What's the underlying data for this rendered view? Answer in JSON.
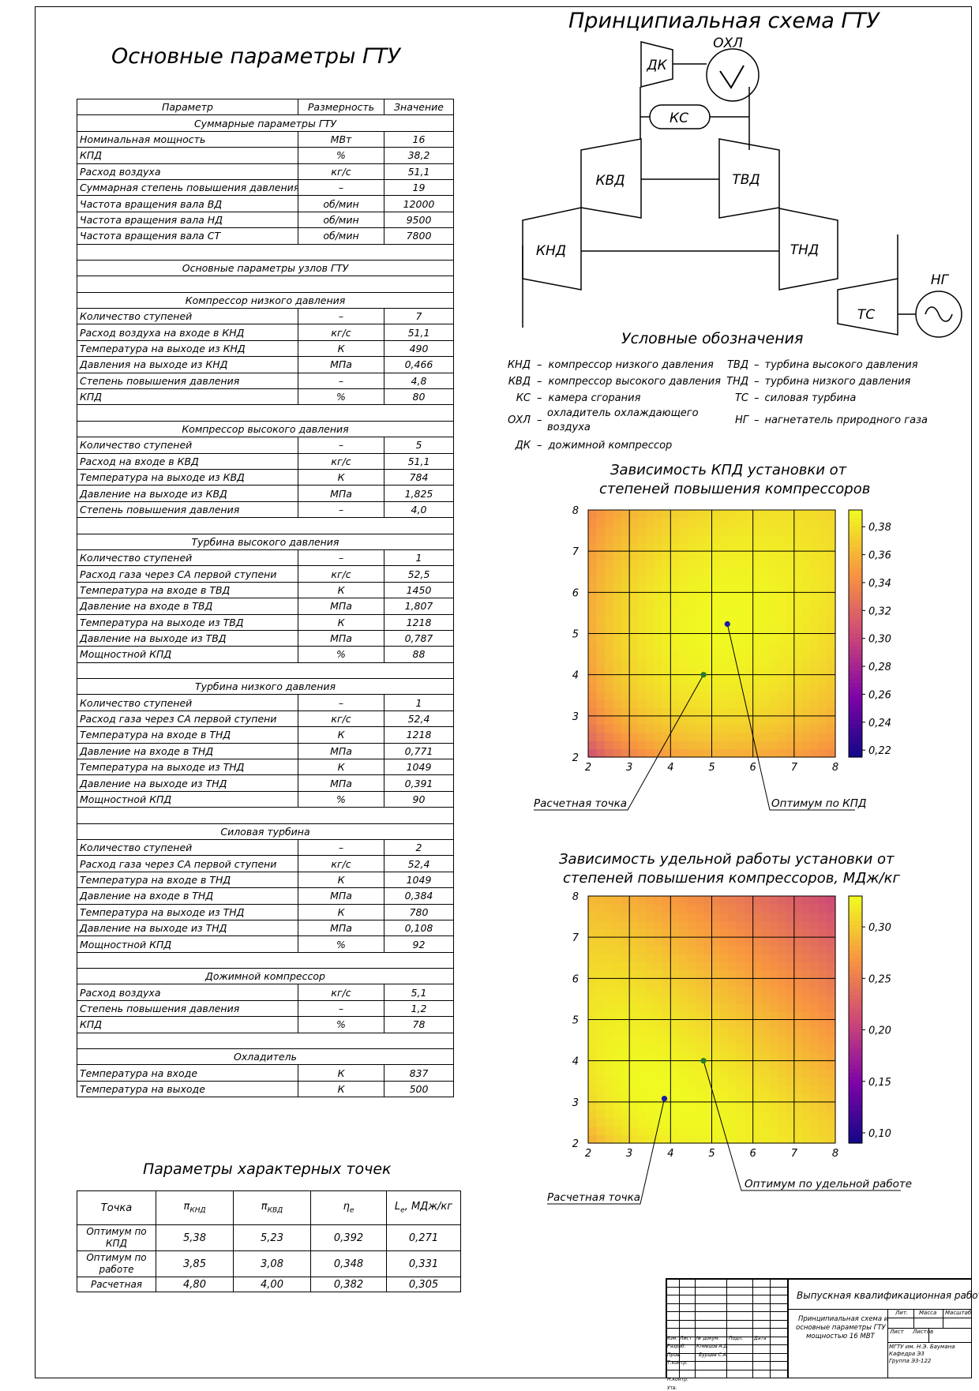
{
  "titles": {
    "main_params": "Основные параметры ГТУ",
    "scheme": "Принципиальная схема ГТУ",
    "legend": "Условные обозначения",
    "points": "Параметры характерных точек",
    "chart1_l1": "Зависимость КПД установки от",
    "chart1_l2": "степеней повышения компрессоров",
    "chart2_l1": "Зависимость удельной работы установки от",
    "chart2_l2": "степеней повышения компрессоров, МДж/кг"
  },
  "main_table": {
    "headers": [
      "Параметр",
      "Размерность",
      "Значение"
    ],
    "rows": [
      {
        "t": "sec",
        "label": "Суммарные параметры ГТУ"
      },
      {
        "t": "row",
        "p": "Номинальная мощность",
        "u": "МВт",
        "v": "16"
      },
      {
        "t": "row",
        "p": "КПД",
        "u": "%",
        "v": "38,2"
      },
      {
        "t": "row",
        "p": "Расход воздуха",
        "u": "кг/с",
        "v": "51,1"
      },
      {
        "t": "row",
        "p": "Суммарная степень повышения давления",
        "u": "–",
        "v": "19"
      },
      {
        "t": "row",
        "p": "Частота вращения вала ВД",
        "u": "об/мин",
        "v": "12000"
      },
      {
        "t": "row",
        "p": "Частота вращения вала НД",
        "u": "об/мин",
        "v": "9500"
      },
      {
        "t": "row",
        "p": "Частота вращения вала СТ",
        "u": "об/мин",
        "v": "7800"
      },
      {
        "t": "blank"
      },
      {
        "t": "sec",
        "label": "Основные параметры узлов ГТУ"
      },
      {
        "t": "blank"
      },
      {
        "t": "sec",
        "label": "Компрессор низкого давления"
      },
      {
        "t": "row",
        "p": "Количество ступеней",
        "u": "–",
        "v": "7"
      },
      {
        "t": "row",
        "p": "Расход воздуха на входе в КНД",
        "u": "кг/с",
        "v": "51,1"
      },
      {
        "t": "row",
        "p": "Температура на выходе из КНД",
        "u": "К",
        "v": "490"
      },
      {
        "t": "row",
        "p": "Давления на выходе из КНД",
        "u": "МПа",
        "v": "0,466"
      },
      {
        "t": "row",
        "p": "Степень повышения давления",
        "u": "–",
        "v": "4,8"
      },
      {
        "t": "row",
        "p": "КПД",
        "u": "%",
        "v": "80"
      },
      {
        "t": "blank"
      },
      {
        "t": "sec",
        "label": "Компрессор высокого давления"
      },
      {
        "t": "row",
        "p": "Количество ступеней",
        "u": "–",
        "v": "5"
      },
      {
        "t": "row",
        "p": "Расход на входе в КВД",
        "u": "кг/с",
        "v": "51,1"
      },
      {
        "t": "row",
        "p": "Температура на выходе из КВД",
        "u": "К",
        "v": "784"
      },
      {
        "t": "row",
        "p": "Давление на выходе из КВД",
        "u": "МПа",
        "v": "1,825"
      },
      {
        "t": "row",
        "p": "Степень повышения давления",
        "u": "–",
        "v": "4,0"
      },
      {
        "t": "blank"
      },
      {
        "t": "sec",
        "label": "Турбина высокого давления"
      },
      {
        "t": "row",
        "p": "Количество ступеней",
        "u": "–",
        "v": "1"
      },
      {
        "t": "row",
        "p": "Расход газа через СА первой ступени",
        "u": "кг/с",
        "v": "52,5"
      },
      {
        "t": "row",
        "p": "Температура на входе в ТВД",
        "u": "К",
        "v": "1450"
      },
      {
        "t": "row",
        "p": "Давление на входе в ТВД",
        "u": "МПа",
        "v": "1,807"
      },
      {
        "t": "row",
        "p": "Температура на выходе из ТВД",
        "u": "К",
        "v": "1218"
      },
      {
        "t": "row",
        "p": "Давление на выходе из ТВД",
        "u": "МПа",
        "v": "0,787"
      },
      {
        "t": "row",
        "p": "Мощностной КПД",
        "u": "%",
        "v": "88"
      },
      {
        "t": "blank"
      },
      {
        "t": "sec",
        "label": "Турбина низкого давления"
      },
      {
        "t": "row",
        "p": "Количество ступеней",
        "u": "–",
        "v": "1"
      },
      {
        "t": "row",
        "p": "Расход газа через СА первой ступени",
        "u": "кг/с",
        "v": "52,4"
      },
      {
        "t": "row",
        "p": "Температура на входе в ТНД",
        "u": "К",
        "v": "1218"
      },
      {
        "t": "row",
        "p": "Давление на входе в ТНД",
        "u": "МПа",
        "v": "0,771"
      },
      {
        "t": "row",
        "p": "Температура на выходе из ТНД",
        "u": "К",
        "v": "1049"
      },
      {
        "t": "row",
        "p": "Давление на выходе из ТНД",
        "u": "МПа",
        "v": "0,391"
      },
      {
        "t": "row",
        "p": "Мощностной КПД",
        "u": "%",
        "v": "90"
      },
      {
        "t": "blank"
      },
      {
        "t": "sec",
        "label": "Силовая турбина"
      },
      {
        "t": "row",
        "p": "Количество ступеней",
        "u": "–",
        "v": "2"
      },
      {
        "t": "row",
        "p": "Расход газа через СА первой ступени",
        "u": "кг/с",
        "v": "52,4"
      },
      {
        "t": "row",
        "p": "Температура на входе в ТНД",
        "u": "К",
        "v": "1049"
      },
      {
        "t": "row",
        "p": "Давление на входе в ТНД",
        "u": "МПа",
        "v": "0,384"
      },
      {
        "t": "row",
        "p": "Температура на выходе из ТНД",
        "u": "К",
        "v": "780"
      },
      {
        "t": "row",
        "p": "Давление на выходе из ТНД",
        "u": "МПа",
        "v": "0,108"
      },
      {
        "t": "row",
        "p": "Мощностной КПД",
        "u": "%",
        "v": "92"
      },
      {
        "t": "blank"
      },
      {
        "t": "sec",
        "label": "Дожимной компрессор"
      },
      {
        "t": "row",
        "p": "Расход воздуха",
        "u": "кг/с",
        "v": "5,1"
      },
      {
        "t": "row",
        "p": "Степень повышения давления",
        "u": "–",
        "v": "1,2"
      },
      {
        "t": "row",
        "p": "КПД",
        "u": "%",
        "v": "78"
      },
      {
        "t": "blank"
      },
      {
        "t": "sec",
        "label": "Охладитель"
      },
      {
        "t": "row",
        "p": "Температура на входе",
        "u": "К",
        "v": "837"
      },
      {
        "t": "row",
        "p": "Температура на выходе",
        "u": "К",
        "v": "500"
      }
    ]
  },
  "points_table": {
    "headers": {
      "h1": "Точка",
      "h2_main": "π",
      "h2_sub": "КНД",
      "h3_main": "π",
      "h3_sub": "КВД",
      "h4_main": "η",
      "h4_sub": "e",
      "h5_main": "L",
      "h5_sub": "e",
      "h5_tail": ", МДж/кг"
    },
    "rows": [
      {
        "name": "Оптимум по КПД",
        "pk": "5,38",
        "pv": "5,23",
        "eta": "0,392",
        "le": "0,271"
      },
      {
        "name": "Оптимум по работе",
        "pk": "3,85",
        "pv": "3,08",
        "eta": "0,348",
        "le": "0,331"
      },
      {
        "name": "Расчетная",
        "pk": "4,80",
        "pv": "4,00",
        "eta": "0,382",
        "le": "0,305"
      }
    ]
  },
  "scheme": {
    "dk": "ДК",
    "ohl": "ОХЛ",
    "ks": "КС",
    "kvd": "КВД",
    "tvd": "ТВД",
    "knd": "КНД",
    "tnd": "ТНД",
    "ts": "ТС",
    "ng": "НГ"
  },
  "legend": {
    "left": [
      {
        "a": "КНД",
        "d": "компрессор низкого давления"
      },
      {
        "a": "КВД",
        "d": "компрессор высокого давления"
      },
      {
        "a": "КС",
        "d": "камера сгорания"
      },
      {
        "a": "ОХЛ",
        "d1": "охладитель охлаждающего",
        "d2": "воздуха"
      },
      {
        "a": "ДК",
        "d": "дожимной компрессор"
      }
    ],
    "right": [
      {
        "a": "ТВД",
        "d": "турбина высокого давления"
      },
      {
        "a": "ТНД",
        "d": "турбина низкого давления"
      },
      {
        "a": "ТС",
        "d": "силовая турбина"
      },
      {
        "a": "НГ",
        "d": "нагнетатель природного газа"
      }
    ],
    "dash": "–"
  },
  "chart_data": [
    {
      "type": "heatmap",
      "title": "Зависимость КПД установки от степеней повышения компрессоров",
      "xlim": [
        2,
        8
      ],
      "ylim": [
        2,
        8
      ],
      "xticks": [
        "2",
        "3",
        "4",
        "5",
        "6",
        "7",
        "8"
      ],
      "yticks": [
        "2",
        "3",
        "4",
        "5",
        "6",
        "7",
        "8"
      ],
      "colorbar_ticks": [
        "0,38",
        "0,36",
        "0,34",
        "0,32",
        "0,30",
        "0,28",
        "0,26",
        "0,24",
        "0,22"
      ],
      "colorbar_range": [
        0.215,
        0.392
      ],
      "colormap": "plasma",
      "points": [
        {
          "name": "Оптимум по КПД",
          "x": 5.38,
          "y": 5.23,
          "color": "#1a1aa8"
        },
        {
          "name": "Расчетная точка",
          "x": 4.8,
          "y": 4.0,
          "color": "#2a7a2a"
        }
      ],
      "annotations": [
        "Расчетная точка",
        "Оптимум по КПД"
      ]
    },
    {
      "type": "heatmap",
      "title": "Зависимость удельной работы установки от степеней повышения компрессоров, МДж/кг",
      "xlim": [
        2,
        8
      ],
      "ylim": [
        2,
        8
      ],
      "xticks": [
        "2",
        "3",
        "4",
        "5",
        "6",
        "7",
        "8"
      ],
      "yticks": [
        "2",
        "3",
        "4",
        "5",
        "6",
        "7",
        "8"
      ],
      "colorbar_ticks": [
        "0,30",
        "0,25",
        "0,20",
        "0,15",
        "0,10"
      ],
      "colorbar_range": [
        0.09,
        0.33
      ],
      "colormap": "plasma",
      "points": [
        {
          "name": "Оптимум по удельной работе",
          "x": 3.85,
          "y": 3.08,
          "color": "#1a1aa8"
        },
        {
          "name": "Расчетная точка",
          "x": 4.8,
          "y": 4.0,
          "color": "#2a7a2a"
        }
      ],
      "annotations": [
        "Расчетная точка",
        "Оптимум по удельной работе"
      ]
    }
  ],
  "stamp": {
    "work": "Выпускная квалификационная работа",
    "doc1": "Принципиальная схема и",
    "doc2": "основные параметры ГТУ",
    "doc3": "мощностью 16 МВТ",
    "lit": "Лит.",
    "mass": "Масса",
    "scale": "Масштаб",
    "sheet": "Лист",
    "sheets": "Листов",
    "org1": "МГТУ им. Н.Э. Баумана",
    "org2": "Кафедра Э3",
    "org3": "Группа Э3-122",
    "cols": [
      "Изм.",
      "Лист",
      "№ докум.",
      "Подп.",
      "Дата"
    ],
    "roles": [
      "Разраб.",
      "Пров.",
      "Т.контр.",
      "",
      "Н.контр.",
      "Утв."
    ],
    "names": [
      "Клевцов А.Д.",
      "Бурцев С.А."
    ]
  }
}
